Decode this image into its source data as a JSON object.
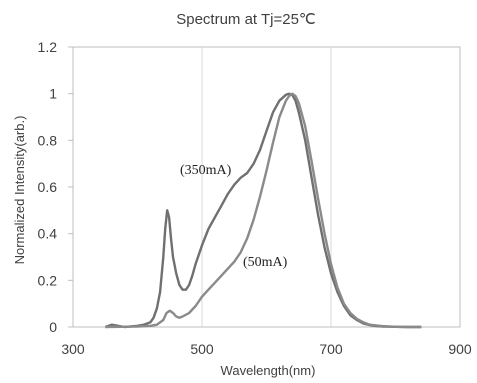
{
  "chart_data": {
    "type": "line",
    "title": "Spectrum   at Tj=25℃",
    "xlabel": "Wavelength(nm)",
    "ylabel": "Normalized Intensity(arb.)",
    "xlim": [
      300,
      900
    ],
    "ylim": [
      0,
      1.2
    ],
    "x_ticks": [
      300,
      500,
      700,
      900
    ],
    "y_ticks": [
      0,
      0.2,
      0.4,
      0.6,
      0.8,
      1,
      1.2
    ],
    "x_tick_labels": [
      "300",
      "500",
      "700",
      "900"
    ],
    "y_tick_labels": [
      "0",
      "0.2",
      "0.4",
      "0.6",
      "0.8",
      "1",
      "1.2"
    ],
    "grid": "vertical",
    "legend": "none",
    "series": [
      {
        "annotation": "(350mA)",
        "color": "#707070",
        "x": [
          350,
          360,
          380,
          400,
          410,
          420,
          425,
          430,
          435,
          440,
          443,
          446,
          449,
          452,
          455,
          460,
          465,
          470,
          475,
          480,
          485,
          490,
          500,
          510,
          520,
          530,
          540,
          550,
          560,
          570,
          580,
          590,
          600,
          610,
          620,
          630,
          635,
          640,
          645,
          650,
          660,
          670,
          680,
          690,
          700,
          710,
          720,
          730,
          740,
          750,
          760,
          770,
          780,
          800,
          820,
          840
        ],
        "y": [
          0,
          0.01,
          0,
          0.005,
          0.01,
          0.02,
          0.04,
          0.08,
          0.15,
          0.3,
          0.42,
          0.5,
          0.47,
          0.38,
          0.3,
          0.23,
          0.18,
          0.16,
          0.16,
          0.18,
          0.22,
          0.27,
          0.35,
          0.42,
          0.47,
          0.52,
          0.57,
          0.61,
          0.64,
          0.66,
          0.7,
          0.76,
          0.84,
          0.92,
          0.97,
          0.995,
          1.0,
          0.995,
          0.97,
          0.92,
          0.8,
          0.64,
          0.48,
          0.34,
          0.23,
          0.15,
          0.09,
          0.05,
          0.03,
          0.015,
          0.008,
          0.004,
          0.002,
          0.001,
          0,
          0
        ]
      },
      {
        "annotation": "(50mA)",
        "color": "#8a8a8a",
        "x": [
          350,
          400,
          420,
          430,
          440,
          445,
          450,
          455,
          460,
          465,
          470,
          480,
          490,
          500,
          510,
          520,
          530,
          540,
          550,
          560,
          570,
          580,
          590,
          600,
          610,
          620,
          630,
          635,
          640,
          645,
          650,
          660,
          670,
          680,
          690,
          700,
          710,
          720,
          730,
          740,
          750,
          760,
          780,
          800,
          820,
          840
        ],
        "y": [
          0,
          0.002,
          0.005,
          0.01,
          0.03,
          0.06,
          0.07,
          0.06,
          0.045,
          0.04,
          0.045,
          0.06,
          0.09,
          0.13,
          0.16,
          0.19,
          0.22,
          0.25,
          0.28,
          0.32,
          0.38,
          0.46,
          0.56,
          0.67,
          0.79,
          0.9,
          0.97,
          0.99,
          1.0,
          0.99,
          0.96,
          0.86,
          0.71,
          0.55,
          0.4,
          0.27,
          0.17,
          0.1,
          0.06,
          0.035,
          0.02,
          0.01,
          0.004,
          0.001,
          0,
          0
        ]
      }
    ]
  }
}
